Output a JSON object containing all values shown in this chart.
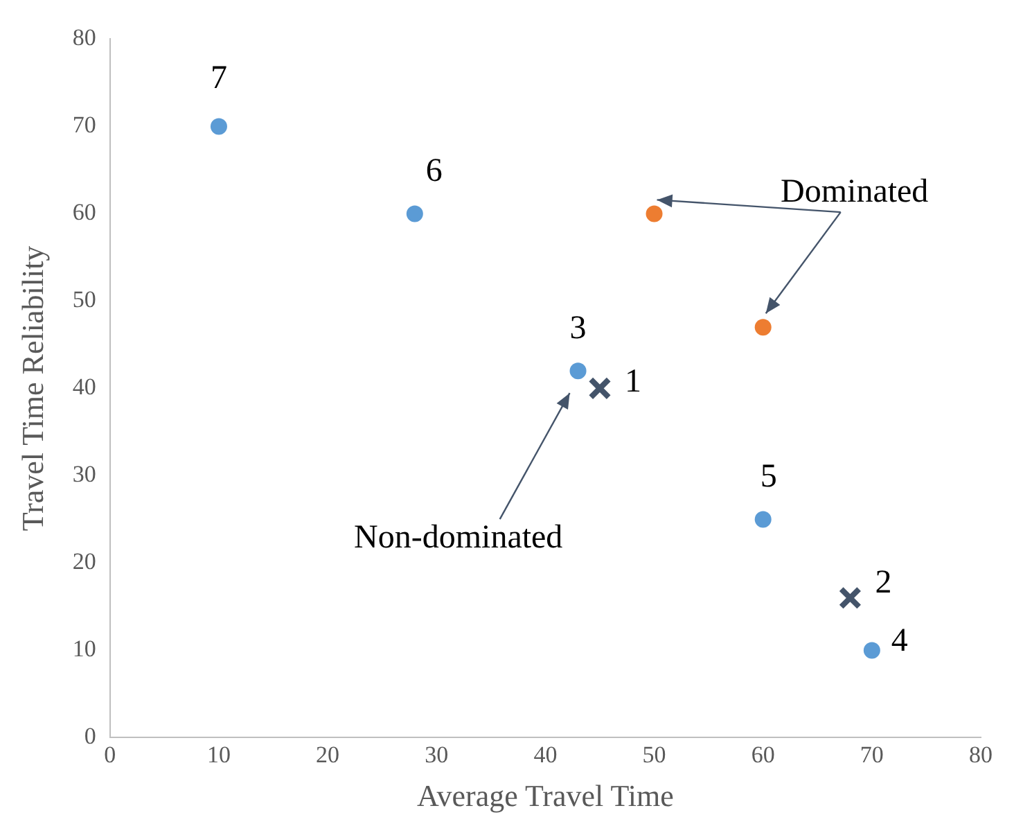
{
  "chart_data": {
    "type": "scatter",
    "xlabel": "Average Travel Time",
    "ylabel": "Travel Time Reliability",
    "xlim": [
      0,
      80
    ],
    "ylim": [
      0,
      80
    ],
    "xticks": [
      0,
      10,
      20,
      30,
      40,
      50,
      60,
      70,
      80
    ],
    "yticks": [
      0,
      10,
      20,
      30,
      40,
      50,
      60,
      70,
      80
    ],
    "grid": false,
    "legend": false,
    "marker": "circle",
    "series": [
      {
        "color": "#5b9bd5",
        "x": [
          10,
          28,
          43,
          60,
          70
        ],
        "values": [
          70,
          60,
          42,
          25,
          10
        ]
      },
      {
        "color": "#ed7d31",
        "x": [
          50,
          60
        ],
        "values": [
          60,
          47
        ]
      },
      {
        "color": "#44546a",
        "x": [
          45,
          68
        ],
        "values": [
          40,
          16
        ],
        "marker": "cross"
      }
    ],
    "annotations": [
      {
        "text": "1",
        "x": 45,
        "y": 40
      },
      {
        "text": "2",
        "x": 68,
        "y": 16
      },
      {
        "text": "3",
        "x": 43,
        "y": 42
      },
      {
        "text": "4",
        "x": 70,
        "y": 10
      },
      {
        "text": "5",
        "x": 60,
        "y": 25
      },
      {
        "text": "6",
        "x": 28,
        "y": 60
      },
      {
        "text": "7",
        "x": 10,
        "y": 70
      },
      "Dominated",
      "Non-dominated"
    ]
  }
}
